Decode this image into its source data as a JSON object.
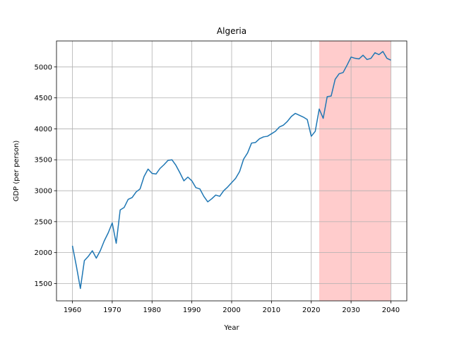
{
  "chart_data": {
    "type": "line",
    "title": "Algeria",
    "xlabel": "Year",
    "ylabel": "GDP (per person)",
    "xlim": [
      1956,
      2044
    ],
    "ylim": [
      1220,
      5420
    ],
    "x_ticks": [
      1960,
      1970,
      1980,
      1990,
      2000,
      2010,
      2020,
      2030,
      2040
    ],
    "y_ticks": [
      1500,
      2000,
      2500,
      3000,
      3500,
      4000,
      4500,
      5000
    ],
    "grid": true,
    "line_color": "#1f77b4",
    "highlight": {
      "x_start": 2022,
      "x_end": 2040,
      "color": "#ffcccc"
    },
    "series": [
      {
        "x": [
          1960,
          1961,
          1962,
          1963,
          1964,
          1965,
          1966,
          1967,
          1968,
          1969,
          1970,
          1971,
          1972,
          1973,
          1974,
          1975,
          1976,
          1977,
          1978,
          1979,
          1980,
          1981,
          1982,
          1983,
          1984,
          1985,
          1986,
          1987,
          1988,
          1989,
          1990,
          1991,
          1992,
          1993,
          1994,
          1995,
          1996,
          1997,
          1998,
          1999,
          2000,
          2001,
          2002,
          2003,
          2004,
          2005,
          2006,
          2007,
          2008,
          2009,
          2010,
          2011,
          2012,
          2013,
          2014,
          2015,
          2016,
          2017,
          2018,
          2019,
          2020,
          2021,
          2022,
          2023,
          2024,
          2025,
          2026,
          2027,
          2028,
          2029,
          2030,
          2031,
          2032,
          2033,
          2034,
          2035,
          2036,
          2037,
          2038,
          2039,
          2040
        ],
        "y": [
          2110,
          1780,
          1420,
          1870,
          1940,
          2030,
          1910,
          2030,
          2190,
          2320,
          2480,
          2150,
          2690,
          2730,
          2860,
          2890,
          2980,
          3030,
          3230,
          3350,
          3280,
          3270,
          3360,
          3420,
          3490,
          3500,
          3410,
          3290,
          3160,
          3220,
          3160,
          3050,
          3030,
          2910,
          2820,
          2870,
          2930,
          2910,
          3000,
          3060,
          3130,
          3200,
          3310,
          3510,
          3610,
          3770,
          3780,
          3840,
          3870,
          3880,
          3920,
          3960,
          4030,
          4060,
          4120,
          4200,
          4250,
          4220,
          4190,
          4150,
          3880,
          3960,
          4320,
          4170,
          4520,
          4530,
          4800,
          4890,
          4910,
          5030,
          5160,
          5140,
          5130,
          5190,
          5120,
          5140,
          5230,
          5200,
          5250,
          5140,
          5110
        ]
      }
    ]
  }
}
